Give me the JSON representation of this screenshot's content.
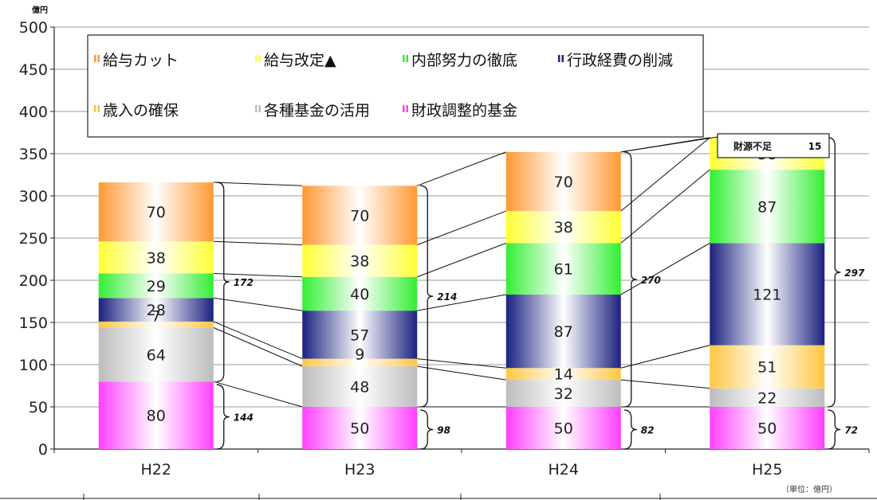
{
  "chart_data": {
    "type": "bar",
    "stacked": true,
    "y_unit": "億円",
    "note": "（単位：億円）",
    "categories": [
      "H22",
      "H23",
      "H24",
      "H25"
    ],
    "ylim": [
      0,
      500
    ],
    "yticks": [
      0,
      50,
      100,
      150,
      200,
      250,
      300,
      350,
      400,
      450,
      500
    ],
    "grid": true,
    "legend_placement": "top-left",
    "series": [
      {
        "name": "財政調整的基金",
        "color": "#ff40ff",
        "values": [
          80,
          50,
          50,
          50
        ]
      },
      {
        "name": "各種基金の活用",
        "color": "#bdbdbd",
        "values": [
          64,
          48,
          32,
          22
        ]
      },
      {
        "name": "歳入の確保",
        "color": "#ffc640",
        "values": [
          7,
          9,
          14,
          51
        ]
      },
      {
        "name": "行政経費の削減",
        "color": "#1c2280",
        "values": [
          28,
          57,
          87,
          121
        ]
      },
      {
        "name": "内部努力の徹底",
        "color": "#33ee33",
        "values": [
          29,
          40,
          61,
          87
        ]
      },
      {
        "name": "給与改定▲",
        "color": "#ffff33",
        "values": [
          38,
          38,
          38,
          38
        ]
      },
      {
        "name": "給与カット",
        "color": "#ff9933",
        "values": [
          70,
          70,
          70,
          0
        ]
      }
    ],
    "legend_order": [
      "給与カット",
      "給与改定▲",
      "内部努力の徹底",
      "行政経費の削減",
      "歳入の確保",
      "各種基金の活用",
      "財政調整的基金"
    ],
    "upper_braces": [
      {
        "category": "H22",
        "label": "172"
      },
      {
        "category": "H23",
        "label": "214"
      },
      {
        "category": "H24",
        "label": "270"
      },
      {
        "category": "H25",
        "label": "297"
      }
    ],
    "lower_braces": [
      {
        "category": "H22",
        "label": "144"
      },
      {
        "category": "H23",
        "label": "98"
      },
      {
        "category": "H24",
        "label": "82"
      },
      {
        "category": "H25",
        "label": "72"
      }
    ],
    "shortage": {
      "category": "H25",
      "label": "財源不足",
      "value": "15"
    }
  }
}
